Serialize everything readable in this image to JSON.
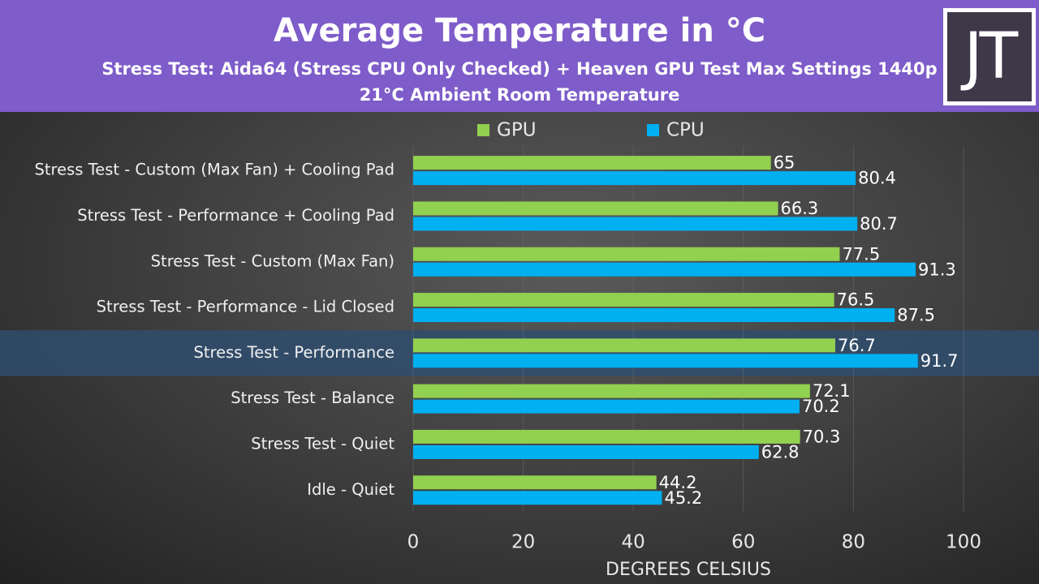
{
  "header": {
    "title": "Average Temperature in °C",
    "subtitle_line1": "Stress Test: Aida64 (Stress CPU Only Checked) + Heaven GPU Test Max Settings 1440p",
    "subtitle_line2": "21°C Ambient Room Temperature",
    "logo_text": "JT"
  },
  "colors": {
    "header_bg": "#7e5cc9",
    "gpu": "#92d050",
    "cpu": "#00b0f0",
    "highlight": "#2f4e6e"
  },
  "chart_data": {
    "type": "bar",
    "orientation": "horizontal",
    "title": "Average Temperature in °C",
    "xlabel": "DEGREES CELSIUS",
    "ylabel": "",
    "xlim": [
      0,
      100
    ],
    "x_ticks": [
      0,
      20,
      40,
      60,
      80,
      100
    ],
    "grid": true,
    "legend_position": "top",
    "highlighted_category": "Stress Test - Performance",
    "categories": [
      "Stress Test - Custom (Max Fan) + Cooling Pad",
      "Stress Test - Performance + Cooling Pad",
      "Stress Test - Custom (Max Fan)",
      "Stress Test - Performance - Lid Closed",
      "Stress Test - Performance",
      "Stress Test - Balance",
      "Stress Test - Quiet",
      "Idle - Quiet"
    ],
    "series": [
      {
        "name": "GPU",
        "values": [
          65,
          66.3,
          77.5,
          76.5,
          76.7,
          72.1,
          70.3,
          44.2
        ]
      },
      {
        "name": "CPU",
        "values": [
          80.4,
          80.7,
          91.3,
          87.5,
          91.7,
          70.2,
          62.8,
          45.2
        ]
      }
    ]
  }
}
